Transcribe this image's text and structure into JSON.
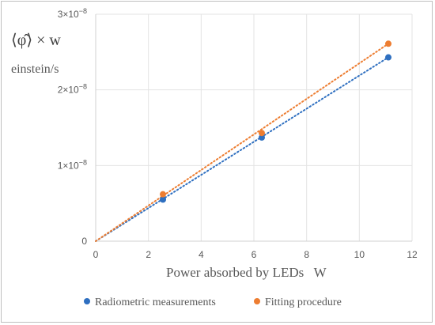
{
  "chart_data": {
    "type": "scatter",
    "title": "",
    "xlabel": "Power absorbed by LEDs   W",
    "ylabel": "⟨φ̂⟩ × w",
    "ylabel_unit": "einstein/s",
    "xlim": [
      0,
      12
    ],
    "ylim": [
      0,
      3e-08
    ],
    "x_ticks": [
      "0",
      "2",
      "4",
      "6",
      "8",
      "10",
      "12"
    ],
    "y_ticks": [
      {
        "value": 0,
        "mantissa": "0",
        "exponent": ""
      },
      {
        "value": 1e-08,
        "mantissa": "1×10",
        "exponent": "−8"
      },
      {
        "value": 2e-08,
        "mantissa": "2×10",
        "exponent": "−8"
      },
      {
        "value": 3e-08,
        "mantissa": "3×10",
        "exponent": "−8"
      }
    ],
    "grid": true,
    "legend_position": "bottom",
    "series": [
      {
        "name": "Radiometric measurements",
        "color": "#2e6fc0",
        "points": [
          {
            "x": 2.55,
            "y": 5.5e-09
          },
          {
            "x": 6.3,
            "y": 1.37e-08
          },
          {
            "x": 11.1,
            "y": 2.43e-08
          }
        ],
        "trendline": {
          "style": "dotted",
          "from": [
            0,
            0
          ],
          "to": [
            11.1,
            2.43e-08
          ]
        }
      },
      {
        "name": "Fitting procedure",
        "color": "#ed7d31",
        "points": [
          {
            "x": 2.55,
            "y": 6.2e-09
          },
          {
            "x": 6.3,
            "y": 1.43e-08
          },
          {
            "x": 11.1,
            "y": 2.61e-08
          }
        ],
        "trendline": {
          "style": "dotted",
          "from": [
            0,
            0
          ],
          "to": [
            11.1,
            2.61e-08
          ]
        }
      }
    ]
  }
}
